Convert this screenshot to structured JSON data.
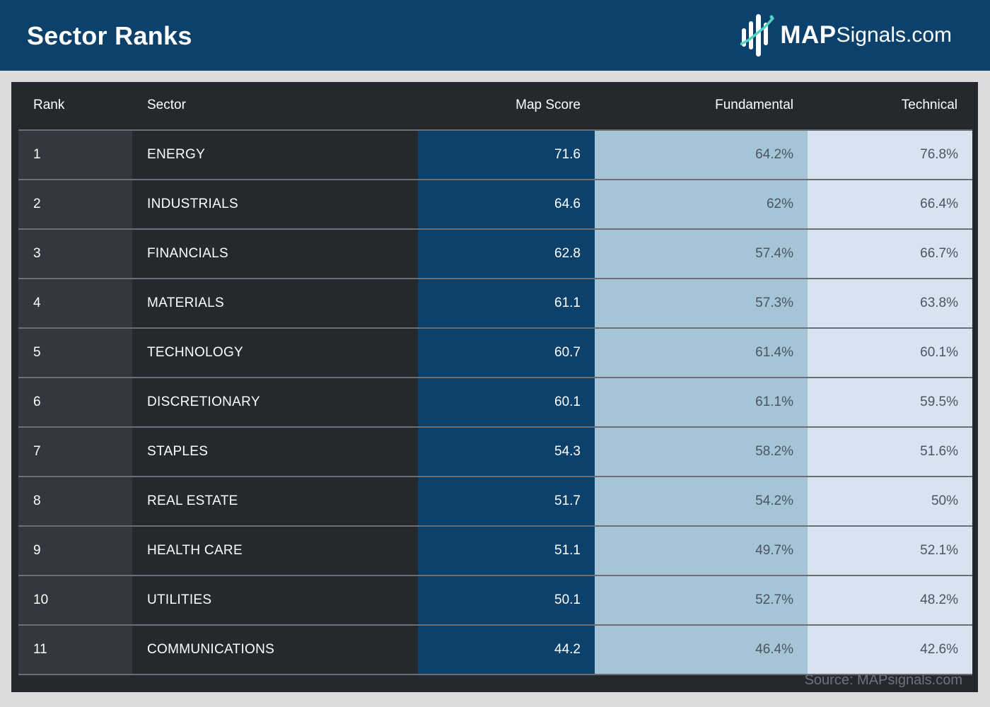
{
  "header": {
    "title": "Sector Ranks",
    "brand_bold": "MAP",
    "brand_light": "Signals.com",
    "brand_color": "#0b416b"
  },
  "chart_data": {
    "type": "table",
    "columns": [
      "Rank",
      "Sector",
      "Map Score",
      "Fundamental",
      "Technical"
    ],
    "rows": [
      [
        "1",
        "ENERGY",
        "71.6",
        "64.2%",
        "76.8%"
      ],
      [
        "2",
        "INDUSTRIALS",
        "64.6",
        "62%",
        "66.4%"
      ],
      [
        "3",
        "FINANCIALS",
        "62.8",
        "57.4%",
        "66.7%"
      ],
      [
        "4",
        "MATERIALS",
        "61.1",
        "57.3%",
        "63.8%"
      ],
      [
        "5",
        "TECHNOLOGY",
        "60.7",
        "61.4%",
        "60.1%"
      ],
      [
        "6",
        "DISCRETIONARY",
        "60.1",
        "61.1%",
        "59.5%"
      ],
      [
        "7",
        "STAPLES",
        "54.3",
        "58.2%",
        "51.6%"
      ],
      [
        "8",
        "REAL ESTATE",
        "51.7",
        "54.2%",
        "50%"
      ],
      [
        "9",
        "HEALTH CARE",
        "51.1",
        "49.7%",
        "52.1%"
      ],
      [
        "10",
        "UTILITIES",
        "50.1",
        "52.7%",
        "48.2%"
      ],
      [
        "11",
        "COMMUNICATIONS",
        "44.2",
        "46.4%",
        "42.6%"
      ]
    ],
    "column_colors": {
      "rank": "#33373e",
      "sector": "#25282d",
      "map_score": "#0b416b",
      "fundamental": "#a5c4d6",
      "technical": "#d7e3ef"
    }
  },
  "source": "Source: MAPsignals.com"
}
